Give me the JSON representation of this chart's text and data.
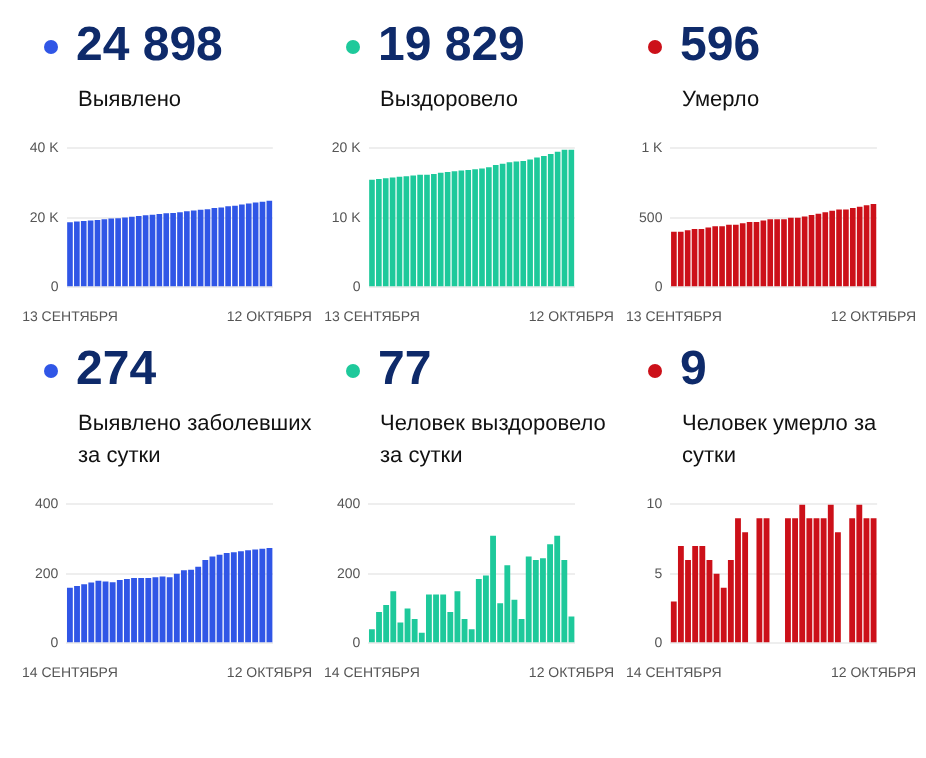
{
  "chart_data": [
    {
      "type": "bar",
      "title": "24 898",
      "subtitle": "Выявлено",
      "categories": [
        "13 СЕНТЯБРЯ",
        null,
        null,
        null,
        null,
        null,
        null,
        null,
        null,
        null,
        null,
        null,
        null,
        null,
        null,
        null,
        null,
        null,
        null,
        null,
        null,
        null,
        null,
        null,
        null,
        null,
        null,
        null,
        null,
        "12 ОКТЯБРЯ"
      ],
      "color": "#3056e6",
      "values": [
        18700,
        18900,
        19100,
        19200,
        19400,
        19600,
        19800,
        19900,
        20100,
        20300,
        20500,
        20700,
        20900,
        21100,
        21300,
        21400,
        21600,
        21900,
        22100,
        22300,
        22500,
        22800,
        23000,
        23300,
        23500,
        23800,
        24100,
        24400,
        24600,
        24900
      ],
      "ylim": [
        0,
        40000
      ],
      "yticks": [
        0,
        {
          "value": 20000,
          "label": "20 K"
        },
        {
          "value": 40000,
          "label": "40 K"
        }
      ],
      "grid": "y"
    },
    {
      "type": "bar",
      "title": "19 829",
      "subtitle": "Выздоровело",
      "categories": [
        "13 СЕНТЯБРЯ",
        null,
        null,
        null,
        null,
        null,
        null,
        null,
        null,
        null,
        null,
        null,
        null,
        null,
        null,
        null,
        null,
        null,
        null,
        null,
        null,
        null,
        null,
        null,
        null,
        null,
        null,
        null,
        null,
        "12 ОКТЯБРЯ"
      ],
      "color": "#1ec99b",
      "values": [
        15500,
        15600,
        15700,
        15800,
        15900,
        16000,
        16100,
        16200,
        16200,
        16300,
        16500,
        16600,
        16700,
        16800,
        16900,
        17000,
        17100,
        17300,
        17600,
        17800,
        18000,
        18100,
        18200,
        18400,
        18700,
        18900,
        19200,
        19500,
        19800,
        19800
      ],
      "ylim": [
        0,
        20000
      ],
      "yticks": [
        0,
        {
          "value": 10000,
          "label": "10 K"
        },
        {
          "value": 20000,
          "label": "20 K"
        }
      ],
      "grid": "y"
    },
    {
      "type": "bar",
      "title": "596",
      "subtitle": "Умерло",
      "categories": [
        "13 СЕНТЯБРЯ",
        null,
        null,
        null,
        null,
        null,
        null,
        null,
        null,
        null,
        null,
        null,
        null,
        null,
        null,
        null,
        null,
        null,
        null,
        null,
        null,
        null,
        null,
        null,
        null,
        null,
        null,
        null,
        null,
        "12 ОКТЯБРЯ"
      ],
      "color": "#cc1019",
      "values": [
        400,
        400,
        410,
        420,
        420,
        430,
        440,
        440,
        450,
        450,
        460,
        470,
        470,
        480,
        490,
        490,
        490,
        500,
        500,
        510,
        520,
        530,
        540,
        550,
        560,
        560,
        570,
        580,
        590,
        600
      ],
      "ylim": [
        0,
        1000
      ],
      "yticks": [
        0,
        500,
        {
          "value": 1000,
          "label": "1 K"
        }
      ],
      "grid": "y"
    },
    {
      "type": "bar",
      "title": "274",
      "subtitle": "Выявлено заболевших за сутки",
      "categories": [
        "14 СЕНТЯБРЯ",
        null,
        null,
        null,
        null,
        null,
        null,
        null,
        null,
        null,
        null,
        null,
        null,
        null,
        null,
        null,
        null,
        null,
        null,
        null,
        null,
        null,
        null,
        null,
        null,
        null,
        null,
        null,
        "12 ОКТЯБРЯ"
      ],
      "color": "#3056e6",
      "values": [
        160,
        165,
        170,
        175,
        180,
        178,
        176,
        182,
        185,
        188,
        188,
        188,
        190,
        192,
        190,
        200,
        210,
        212,
        220,
        240,
        250,
        255,
        260,
        262,
        265,
        268,
        270,
        272,
        274
      ],
      "ylim": [
        0,
        400
      ],
      "yticks": [
        0,
        200,
        400
      ],
      "grid": "y"
    },
    {
      "type": "bar",
      "title": "77",
      "subtitle": "Человек выздоровело за сутки",
      "categories": [
        "14 СЕНТЯБРЯ",
        null,
        null,
        null,
        null,
        null,
        null,
        null,
        null,
        null,
        null,
        null,
        null,
        null,
        null,
        null,
        null,
        null,
        null,
        null,
        null,
        null,
        null,
        null,
        null,
        null,
        null,
        null,
        "12 ОКТЯБРЯ"
      ],
      "color": "#1ec99b",
      "values": [
        40,
        90,
        110,
        150,
        60,
        100,
        70,
        30,
        140,
        140,
        140,
        90,
        150,
        70,
        40,
        185,
        195,
        310,
        115,
        225,
        125,
        70,
        250,
        240,
        245,
        285,
        310,
        240,
        77
      ],
      "ylim": [
        0,
        400
      ],
      "yticks": [
        0,
        200,
        400
      ],
      "grid": "y"
    },
    {
      "type": "bar",
      "title": "9",
      "subtitle": "Человек умерло за сутки",
      "categories": [
        "14 СЕНТЯБРЯ",
        null,
        null,
        null,
        null,
        null,
        null,
        null,
        null,
        null,
        null,
        null,
        null,
        null,
        null,
        null,
        null,
        null,
        null,
        null,
        null,
        null,
        null,
        null,
        null,
        null,
        null,
        null,
        "12 ОКТЯБРЯ"
      ],
      "color": "#cc1019",
      "values": [
        3,
        7,
        6,
        7,
        7,
        6,
        5,
        4,
        6,
        9,
        8,
        0,
        9,
        9,
        0,
        0,
        9,
        9,
        10,
        9,
        9,
        9,
        10,
        8,
        0,
        9,
        10,
        9,
        9
      ],
      "ylim": [
        0,
        10
      ],
      "yticks": [
        0,
        5,
        10
      ],
      "grid": "y"
    }
  ]
}
